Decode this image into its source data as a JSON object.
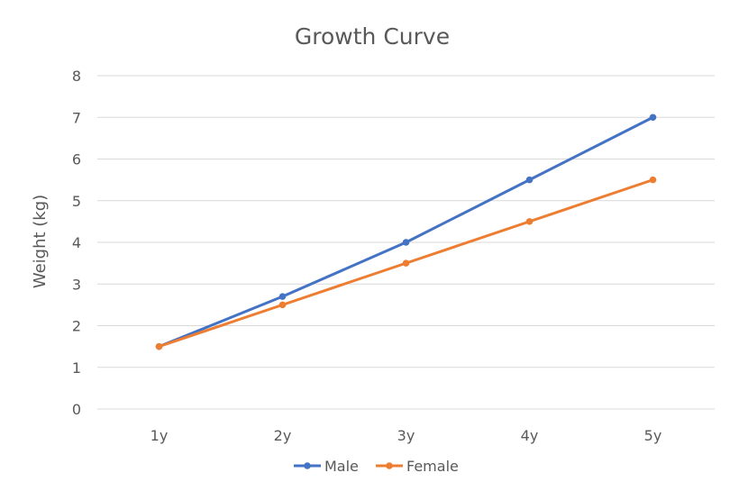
{
  "chart_data": {
    "type": "line",
    "title": "Growth Curve",
    "xlabel": "",
    "ylabel": "Weight (kg)",
    "categories": [
      "1y",
      "2y",
      "3y",
      "4y",
      "5y"
    ],
    "ylim": [
      0,
      8
    ],
    "yticks": [
      "0",
      "1",
      "2",
      "3",
      "4",
      "5",
      "6",
      "7",
      "8"
    ],
    "grid": true,
    "legend_position": "bottom",
    "series": [
      {
        "name": "Male",
        "color": "#4472c4",
        "values": [
          1.5,
          2.7,
          4.0,
          5.5,
          7.0
        ]
      },
      {
        "name": "Female",
        "color": "#ed7d31",
        "values": [
          1.5,
          2.5,
          3.5,
          4.5,
          5.5
        ]
      }
    ]
  }
}
